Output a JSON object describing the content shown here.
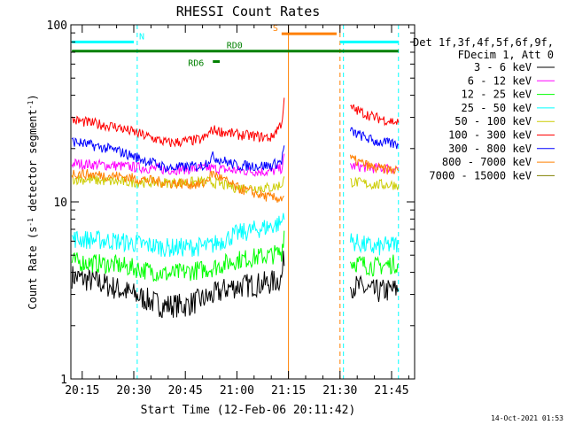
{
  "chart_data": {
    "type": "line",
    "title": "RHESSI Count Rates",
    "xlabel": "Start Time (12-Feb-06 20:11:42)",
    "ylabel_main": "Count Rate (s",
    "ylabel_sup1": "-1",
    "ylabel_mid": " detector segment",
    "ylabel_sup2": "-1",
    "ylabel_end": ")",
    "y_scale": "log",
    "ylim": [
      1,
      100
    ],
    "xlim": [
      "20:11:42",
      "21:51:42"
    ],
    "x_ticks": [
      "20:15",
      "20:30",
      "20:45",
      "21:00",
      "21:15",
      "21:30",
      "21:45"
    ],
    "y_ticks": [
      "1",
      "10",
      "100"
    ],
    "data_gap": [
      "21:17",
      "21:33"
    ],
    "legend": {
      "header1": "Det 1f,3f,4f,5f,6f,9f,",
      "header2": "FDecim 1, Att 0",
      "placement": "top-right outside"
    },
    "series": [
      {
        "name": "3 - 6 keV",
        "color": "#000000",
        "x": [
          "20:12",
          "20:20",
          "20:30",
          "20:38",
          "20:45",
          "20:52",
          "20:58",
          "21:05",
          "21:10",
          "21:13",
          "21:14",
          "21:33",
          "21:40",
          "21:47"
        ],
        "values": [
          3.8,
          3.5,
          3.0,
          2.6,
          2.6,
          2.9,
          3.3,
          3.4,
          3.5,
          3.7,
          5.5,
          3.4,
          3.1,
          3.2
        ]
      },
      {
        "name": "6 - 12 keV",
        "color": "#ff00ff",
        "x": [
          "20:12",
          "20:25",
          "20:40",
          "20:52",
          "21:00",
          "21:10",
          "21:13",
          "21:14",
          "21:33",
          "21:40",
          "21:47"
        ],
        "values": [
          16.5,
          16,
          15.2,
          15.5,
          15,
          14.8,
          15.5,
          18.5,
          16,
          15.5,
          15.5
        ]
      },
      {
        "name": "12 - 25 keV",
        "color": "#00ff00",
        "x": [
          "20:12",
          "20:25",
          "20:40",
          "20:52",
          "21:00",
          "21:10",
          "21:13",
          "21:14",
          "21:33",
          "21:40",
          "21:47"
        ],
        "values": [
          4.6,
          4.4,
          3.9,
          4.2,
          4.7,
          5.0,
          5.2,
          7.5,
          4.6,
          4.3,
          4.5
        ]
      },
      {
        "name": "25 - 50 keV",
        "color": "#00ffff",
        "x": [
          "20:12",
          "20:25",
          "20:40",
          "20:52",
          "21:00",
          "21:10",
          "21:13",
          "21:14",
          "21:33",
          "21:40",
          "21:47"
        ],
        "values": [
          6.2,
          6.0,
          5.5,
          5.6,
          6.6,
          7.3,
          7.6,
          9.5,
          6.0,
          5.5,
          5.8
        ]
      },
      {
        "name": "50 - 100 keV",
        "color": "#cccc00",
        "x": [
          "20:12",
          "20:25",
          "20:40",
          "20:52",
          "21:00",
          "21:10",
          "21:13",
          "21:14",
          "21:33",
          "21:40",
          "21:47"
        ],
        "values": [
          13.5,
          13,
          12.8,
          13,
          12,
          12,
          12.5,
          14,
          13,
          12.5,
          12.5
        ]
      },
      {
        "name": "100 - 300 keV",
        "color": "#ff0000",
        "x": [
          "20:12",
          "20:25",
          "20:40",
          "20:50",
          "20:53",
          "21:00",
          "21:10",
          "21:13",
          "21:14",
          "21:33",
          "21:40",
          "21:47"
        ],
        "values": [
          29,
          26.5,
          21.5,
          22.5,
          25.5,
          24,
          23,
          28,
          40,
          34,
          30,
          28
        ]
      },
      {
        "name": "300 - 800 keV",
        "color": "#0000ff",
        "x": [
          "20:12",
          "20:25",
          "20:40",
          "20:50",
          "20:53",
          "21:00",
          "21:10",
          "21:13",
          "21:14",
          "21:33",
          "21:40",
          "21:47"
        ],
        "values": [
          22,
          19.5,
          15.5,
          16,
          18,
          16,
          16,
          17,
          22,
          25,
          22,
          21
        ]
      },
      {
        "name": "800 - 7000 keV",
        "color": "#ff8000",
        "x": [
          "20:12",
          "20:25",
          "20:40",
          "20:50",
          "20:53",
          "21:00",
          "21:10",
          "21:13",
          "21:14",
          "21:33",
          "21:40",
          "21:47"
        ],
        "values": [
          14.5,
          14,
          12.8,
          12.5,
          14.5,
          12,
          10.5,
          10.5,
          11,
          17.5,
          15.5,
          15
        ]
      },
      {
        "name": "7000 - 15000 keV",
        "color": "#808000",
        "x": [],
        "values": []
      }
    ],
    "attenuator_bars": [
      {
        "label": "N",
        "color": "#00ffff",
        "x": [
          "20:12",
          "20:30"
        ],
        "y": 80
      },
      {
        "label": "",
        "color": "#00ffff",
        "x": [
          "21:30",
          "21:47"
        ],
        "y": 80
      },
      {
        "label": "S",
        "color": "#ff8000",
        "x": [
          "21:13",
          "21:29"
        ],
        "y": 89
      }
    ],
    "decimation_bars": [
      {
        "label": "RD0",
        "color": "#008000",
        "x": [
          "20:12",
          "21:47"
        ],
        "y": 71
      },
      {
        "label": "RD6",
        "color": "#008000",
        "x": [
          "20:53",
          "20:55"
        ],
        "y": 62
      }
    ],
    "vlines": [
      {
        "x": "20:11:42",
        "color": "#00ffff",
        "style": "dashed"
      },
      {
        "x": "20:31",
        "color": "#00ffff",
        "style": "dashed"
      },
      {
        "x": "21:15",
        "color": "#ff8000",
        "style": "solid"
      },
      {
        "x": "21:30",
        "color": "#ff8000",
        "style": "dashed"
      },
      {
        "x": "21:31",
        "color": "#00ffff",
        "style": "dashed"
      },
      {
        "x": "21:47",
        "color": "#00ffff",
        "style": "dashed"
      }
    ]
  },
  "footer": {
    "timestamp": "14-Oct-2021 01:53"
  }
}
